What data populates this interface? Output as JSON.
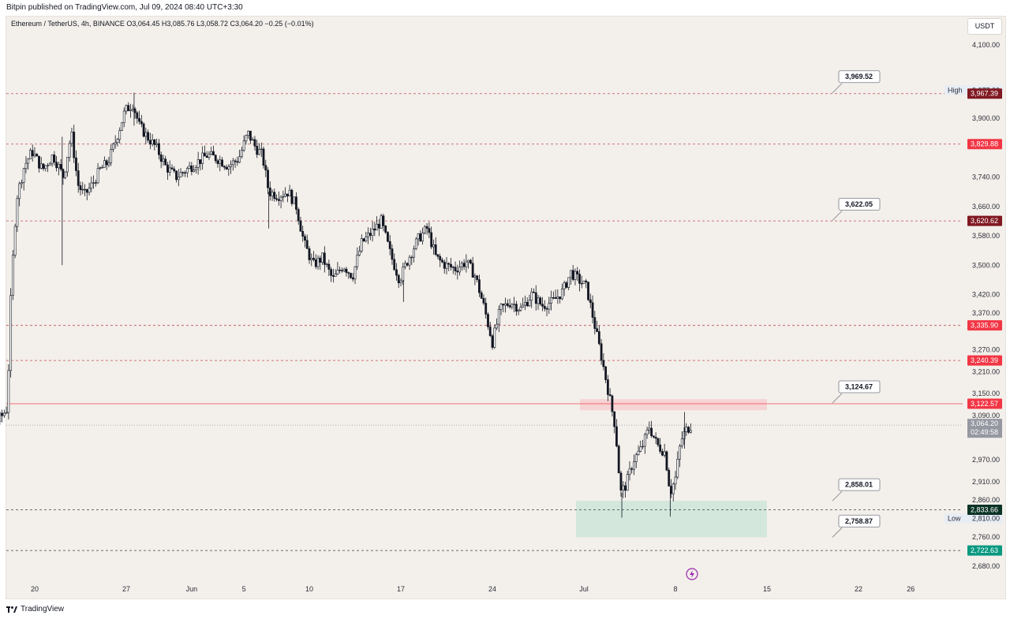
{
  "header": {
    "published_by": "Bitpin published on TradingView.com, Jul 09, 2024 08:40 UTC+3:30"
  },
  "symbol": {
    "info": "Ethereum / TetherUS, 4h, BINANCE  O3,064.45  H3,085.76  L3,058.72  C3,064.20  −0.25 (−0.01%)"
  },
  "currency_button": "USDT",
  "footer": {
    "brand": "TradingView"
  },
  "colors": {
    "background": "#f3efea",
    "candle": "#131722",
    "resistance_line": "#b22833",
    "support_line": "#131722",
    "red_zone": "#f6cfd2",
    "green_zone": "#cfe6dc",
    "current_price_line": "#f23645",
    "dark_red_tag": "#801922",
    "red_tag": "#f23645",
    "dark_green_tag": "#0b3326",
    "green_tag": "#089981",
    "grey_tag": "#9598a1"
  },
  "chart_data": {
    "type": "candlestick",
    "title": "Ethereum / TetherUS, 4h, BINANCE",
    "ylim": [
      2645,
      4170
    ],
    "y_ticks": [
      {
        "label": "4,100.00",
        "value": 4100
      },
      {
        "label": "3,900.00",
        "value": 3900
      },
      {
        "label": "3,740.00",
        "value": 3740
      },
      {
        "label": "3,660.00",
        "value": 3660
      },
      {
        "label": "3,580.00",
        "value": 3580
      },
      {
        "label": "3,500.00",
        "value": 3500
      },
      {
        "label": "3,420.00",
        "value": 3420
      },
      {
        "label": "3,370.00",
        "value": 3370
      },
      {
        "label": "3,270.00",
        "value": 3270
      },
      {
        "label": "3,210.00",
        "value": 3210
      },
      {
        "label": "3,150.00",
        "value": 3150
      },
      {
        "label": "3,090.00",
        "value": 3090
      },
      {
        "label": "2,970.00",
        "value": 2970
      },
      {
        "label": "2,910.00",
        "value": 2910
      },
      {
        "label": "2,860.00",
        "value": 2860
      },
      {
        "label": "2,810.00",
        "value": 2810
      },
      {
        "label": "2,760.00",
        "value": 2760
      },
      {
        "label": "2,680.00",
        "value": 2680
      }
    ],
    "x_ticks": [
      {
        "label": "20",
        "day": 20
      },
      {
        "label": "27",
        "day": 27
      },
      {
        "label": "Jun",
        "day": 32
      },
      {
        "label": "5",
        "day": 36
      },
      {
        "label": "10",
        "day": 41
      },
      {
        "label": "17",
        "day": 48
      },
      {
        "label": "24",
        "day": 55
      },
      {
        "label": "Jul",
        "day": 62
      },
      {
        "label": "8",
        "day": 69
      },
      {
        "label": "15",
        "day": 76
      },
      {
        "label": "22",
        "day": 83
      },
      {
        "label": "26",
        "day": 87
      }
    ],
    "high_label": {
      "label": "High",
      "value": "3,977.00",
      "price": 3977
    },
    "low_label": {
      "label": "Low",
      "value": "2,810.00",
      "price": 2810
    },
    "levels": [
      {
        "price": 3967.39,
        "label": "3,967.39",
        "style": "dashed",
        "tag": "dark-red"
      },
      {
        "price": 3829.88,
        "label": "3,829.88",
        "style": "dashed",
        "tag": "red"
      },
      {
        "price": 3620.62,
        "label": "3,620.62",
        "style": "dashed",
        "tag": "dark-red"
      },
      {
        "price": 3335.9,
        "label": "3,335.90",
        "style": "dashed",
        "tag": "red"
      },
      {
        "price": 3240.39,
        "label": "3,240.39",
        "style": "dashed",
        "tag": "red"
      },
      {
        "price": 3122.57,
        "label": "3,122.57",
        "style": "solid",
        "tag": "red"
      },
      {
        "price": 2833.66,
        "label": "2,833.66",
        "style": "dashed",
        "tag": "dark-green"
      },
      {
        "price": 2722.63,
        "label": "2,722.63",
        "style": "dashed",
        "tag": "green"
      }
    ],
    "current_price": {
      "price": 3064.2,
      "label": "3,064.20",
      "countdown": "02:49:58"
    },
    "callouts": [
      {
        "label": "3,969.52",
        "price": 3969.52
      },
      {
        "label": "3,622.05",
        "price": 3622.05
      },
      {
        "label": "3,124.67",
        "price": 3124.67
      },
      {
        "label": "2,858.01",
        "price": 2858.01
      },
      {
        "label": "2,758.87",
        "price": 2758.87
      }
    ],
    "zones": [
      {
        "name": "resistance-zone",
        "from_day": 61.7,
        "to_day": 76.0,
        "low": 3105,
        "high": 3135,
        "color": "red"
      },
      {
        "name": "support-zone",
        "from_day": 61.4,
        "to_day": 76.0,
        "low": 2758.87,
        "high": 2858.01,
        "color": "green"
      }
    ],
    "price_path": [
      {
        "day": 14.0,
        "price": 3100
      },
      {
        "day": 14.8,
        "price": 3120
      },
      {
        "day": 15.8,
        "price": 3090
      },
      {
        "day": 16.8,
        "price": 3062
      },
      {
        "day": 17.5,
        "price": 3090
      },
      {
        "day": 17.9,
        "price": 3110
      },
      {
        "day": 18.2,
        "price": 3440
      },
      {
        "day": 18.6,
        "price": 3680
      },
      {
        "day": 19.2,
        "price": 3770
      },
      {
        "day": 19.8,
        "price": 3810
      },
      {
        "day": 20.6,
        "price": 3760
      },
      {
        "day": 21.4,
        "price": 3800
      },
      {
        "day": 22.2,
        "price": 3740
      },
      {
        "day": 22.8,
        "price": 3860
      },
      {
        "day": 23.3,
        "price": 3720
      },
      {
        "day": 23.8,
        "price": 3690
      },
      {
        "day": 24.4,
        "price": 3720
      },
      {
        "day": 25.0,
        "price": 3760
      },
      {
        "day": 25.6,
        "price": 3780
      },
      {
        "day": 26.2,
        "price": 3840
      },
      {
        "day": 26.9,
        "price": 3920
      },
      {
        "day": 27.5,
        "price": 3940
      },
      {
        "day": 28.0,
        "price": 3880
      },
      {
        "day": 28.6,
        "price": 3850
      },
      {
        "day": 29.3,
        "price": 3820
      },
      {
        "day": 30.0,
        "price": 3770
      },
      {
        "day": 30.8,
        "price": 3740
      },
      {
        "day": 31.6,
        "price": 3760
      },
      {
        "day": 32.4,
        "price": 3780
      },
      {
        "day": 33.2,
        "price": 3800
      },
      {
        "day": 34.0,
        "price": 3790
      },
      {
        "day": 34.8,
        "price": 3770
      },
      {
        "day": 35.6,
        "price": 3790
      },
      {
        "day": 36.3,
        "price": 3860
      },
      {
        "day": 36.9,
        "price": 3820
      },
      {
        "day": 37.4,
        "price": 3800
      },
      {
        "day": 37.9,
        "price": 3700
      },
      {
        "day": 38.6,
        "price": 3690
      },
      {
        "day": 39.4,
        "price": 3700
      },
      {
        "day": 40.0,
        "price": 3660
      },
      {
        "day": 40.6,
        "price": 3560
      },
      {
        "day": 41.3,
        "price": 3500
      },
      {
        "day": 42.0,
        "price": 3520
      },
      {
        "day": 42.8,
        "price": 3460
      },
      {
        "day": 43.6,
        "price": 3500
      },
      {
        "day": 44.3,
        "price": 3470
      },
      {
        "day": 45.0,
        "price": 3560
      },
      {
        "day": 45.8,
        "price": 3590
      },
      {
        "day": 46.5,
        "price": 3620
      },
      {
        "day": 47.2,
        "price": 3530
      },
      {
        "day": 47.9,
        "price": 3460
      },
      {
        "day": 48.6,
        "price": 3520
      },
      {
        "day": 49.3,
        "price": 3570
      },
      {
        "day": 50.0,
        "price": 3600
      },
      {
        "day": 50.7,
        "price": 3520
      },
      {
        "day": 51.4,
        "price": 3500
      },
      {
        "day": 52.2,
        "price": 3490
      },
      {
        "day": 53.0,
        "price": 3510
      },
      {
        "day": 53.7,
        "price": 3470
      },
      {
        "day": 54.4,
        "price": 3380
      },
      {
        "day": 55.0,
        "price": 3290
      },
      {
        "day": 55.6,
        "price": 3380
      },
      {
        "day": 56.4,
        "price": 3400
      },
      {
        "day": 57.2,
        "price": 3380
      },
      {
        "day": 58.0,
        "price": 3420
      },
      {
        "day": 58.8,
        "price": 3390
      },
      {
        "day": 59.6,
        "price": 3400
      },
      {
        "day": 60.4,
        "price": 3430
      },
      {
        "day": 61.0,
        "price": 3480
      },
      {
        "day": 61.6,
        "price": 3460
      },
      {
        "day": 62.2,
        "price": 3440
      },
      {
        "day": 62.8,
        "price": 3340
      },
      {
        "day": 63.4,
        "price": 3240
      },
      {
        "day": 63.9,
        "price": 3150
      },
      {
        "day": 64.4,
        "price": 3060
      },
      {
        "day": 64.8,
        "price": 2880
      },
      {
        "day": 65.2,
        "price": 2900
      },
      {
        "day": 65.8,
        "price": 2970
      },
      {
        "day": 66.4,
        "price": 3000
      },
      {
        "day": 67.0,
        "price": 3060
      },
      {
        "day": 67.6,
        "price": 3010
      },
      {
        "day": 68.2,
        "price": 2990
      },
      {
        "day": 68.6,
        "price": 2880
      },
      {
        "day": 69.0,
        "price": 2920
      },
      {
        "day": 69.4,
        "price": 3020
      },
      {
        "day": 69.8,
        "price": 3050
      },
      {
        "day": 70.2,
        "price": 3064.2
      }
    ]
  }
}
